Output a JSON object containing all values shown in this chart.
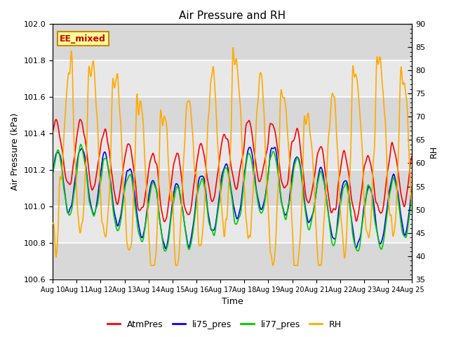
{
  "title": "Air Pressure and RH",
  "xlabel": "Time",
  "ylabel_left": "Air Pressure (kPa)",
  "ylabel_right": "RH",
  "annotation": "EE_mixed",
  "x_tick_labels": [
    "Aug 10",
    "Aug 11",
    "Aug 12",
    "Aug 13",
    "Aug 14",
    "Aug 15",
    "Aug 16",
    "Aug 17",
    "Aug 18",
    "Aug 19",
    "Aug 20",
    "Aug 21",
    "Aug 22",
    "Aug 23",
    "Aug 24",
    "Aug 25"
  ],
  "ylim_left": [
    100.6,
    102.0
  ],
  "ylim_right": [
    35,
    90
  ],
  "yticks_left": [
    100.6,
    100.8,
    101.0,
    101.2,
    101.4,
    101.6,
    101.8,
    102.0
  ],
  "yticks_right": [
    35,
    40,
    45,
    50,
    55,
    60,
    65,
    70,
    75,
    80,
    85,
    90
  ],
  "line_colors": {
    "AtmPres": "#ff0000",
    "li75_pres": "#0000ff",
    "li77_pres": "#00cc00",
    "RH": "#ffaa00"
  },
  "band_colors": [
    "#d8d8d8",
    "#e8e8e8"
  ],
  "bg_color": "#e8e8e8",
  "grid_color": "#ffffff",
  "annotation_bg": "#ffff99",
  "annotation_border": "#cc8800",
  "annotation_text_color": "#cc0000",
  "n_points": 720,
  "seed": 42
}
